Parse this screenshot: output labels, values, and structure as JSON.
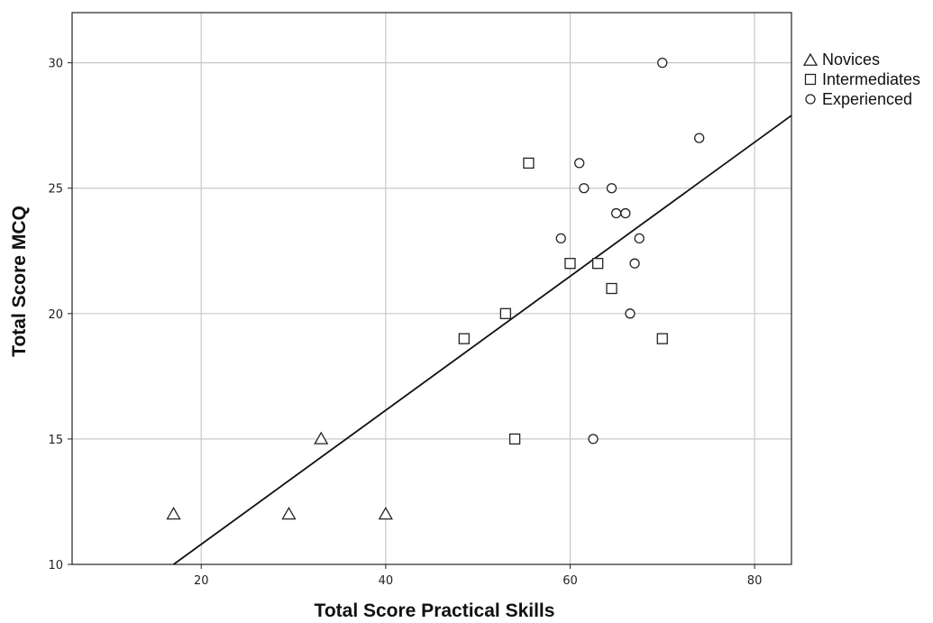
{
  "chart_data": {
    "type": "scatter",
    "xlabel": "Total Score Practical Skills",
    "ylabel": "Total Score MCQ",
    "xlim": [
      6,
      84
    ],
    "ylim": [
      10,
      32
    ],
    "x_ticks": [
      20,
      40,
      60,
      80
    ],
    "y_ticks": [
      10,
      15,
      20,
      25,
      30
    ],
    "grid": true,
    "legend_position": "right",
    "series": [
      {
        "name": "Novices",
        "marker": "triangle",
        "points": [
          [
            17,
            12
          ],
          [
            29.5,
            12
          ],
          [
            33,
            15
          ],
          [
            40,
            12
          ]
        ]
      },
      {
        "name": "Intermediates",
        "marker": "square",
        "points": [
          [
            48.5,
            19
          ],
          [
            53,
            20
          ],
          [
            54,
            15
          ],
          [
            55.5,
            26
          ],
          [
            60,
            22
          ],
          [
            63,
            22
          ],
          [
            64.5,
            21
          ],
          [
            70,
            19
          ]
        ]
      },
      {
        "name": "Experienced",
        "marker": "circle",
        "points": [
          [
            59,
            23
          ],
          [
            61,
            26
          ],
          [
            61.5,
            25
          ],
          [
            62.5,
            15
          ],
          [
            64.5,
            25
          ],
          [
            65,
            24
          ],
          [
            66,
            24
          ],
          [
            66.5,
            20
          ],
          [
            67,
            22
          ],
          [
            67.5,
            23
          ],
          [
            70,
            30
          ],
          [
            74,
            27
          ]
        ]
      }
    ],
    "fit_line": {
      "x": [
        17,
        84
      ],
      "y": [
        10,
        27.9
      ]
    }
  }
}
